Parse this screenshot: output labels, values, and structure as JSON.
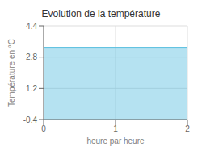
{
  "chart_data": {
    "type": "area",
    "title": "Evolution de la température",
    "xlabel": "heure par heure",
    "ylabel": "Température en °C",
    "x": [
      0,
      2
    ],
    "values": [
      3.3,
      3.3
    ],
    "xlim": [
      0,
      2
    ],
    "ylim": [
      -0.4,
      4.4
    ],
    "xticks": [
      0,
      1,
      2
    ],
    "yticks": [
      -0.4,
      1.2,
      2.8,
      4.4
    ],
    "color": "#5bbfdf",
    "grid": true
  }
}
